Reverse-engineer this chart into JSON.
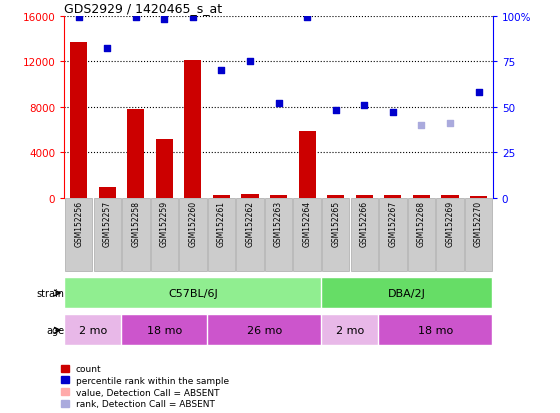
{
  "title": "GDS2929 / 1420465_s_at",
  "samples": [
    "GSM152256",
    "GSM152257",
    "GSM152258",
    "GSM152259",
    "GSM152260",
    "GSM152261",
    "GSM152262",
    "GSM152263",
    "GSM152264",
    "GSM152265",
    "GSM152266",
    "GSM152267",
    "GSM152268",
    "GSM152269",
    "GSM152270"
  ],
  "counts": [
    13700,
    900,
    7800,
    5200,
    12100,
    200,
    350,
    250,
    5900,
    200,
    200,
    200,
    200,
    200,
    170
  ],
  "value_absent": [
    false,
    false,
    false,
    false,
    false,
    false,
    false,
    false,
    false,
    false,
    false,
    false,
    false,
    false,
    false
  ],
  "percentile_ranks": [
    99,
    82,
    99,
    98,
    99,
    70,
    75,
    52,
    99,
    48,
    51,
    47,
    40,
    41,
    58
  ],
  "rank_absent": [
    false,
    false,
    false,
    false,
    false,
    false,
    false,
    false,
    false,
    false,
    false,
    false,
    true,
    true,
    false
  ],
  "strain_groups": [
    {
      "label": "C57BL/6J",
      "start": 0,
      "end": 8,
      "color": "#90ee90"
    },
    {
      "label": "DBA/2J",
      "start": 9,
      "end": 14,
      "color": "#66dd66"
    }
  ],
  "age_groups": [
    {
      "label": "2 mo",
      "start": 0,
      "end": 1,
      "color": "#e8b8e8"
    },
    {
      "label": "18 mo",
      "start": 2,
      "end": 4,
      "color": "#cc55cc"
    },
    {
      "label": "26 mo",
      "start": 5,
      "end": 8,
      "color": "#cc55cc"
    },
    {
      "label": "2 mo",
      "start": 9,
      "end": 10,
      "color": "#e8b8e8"
    },
    {
      "label": "18 mo",
      "start": 11,
      "end": 14,
      "color": "#cc55cc"
    }
  ],
  "ylim_left": [
    0,
    16000
  ],
  "ylim_right": [
    0,
    100
  ],
  "yticks_left": [
    0,
    4000,
    8000,
    12000,
    16000
  ],
  "yticks_right": [
    0,
    25,
    50,
    75,
    100
  ],
  "bar_color": "#cc0000",
  "bar_absent_color": "#ffaaaa",
  "dot_color": "#0000cc",
  "dot_absent_color": "#aaaadd",
  "bg_color": "#ffffff",
  "legend_items": [
    {
      "label": "count",
      "color": "#cc0000"
    },
    {
      "label": "percentile rank within the sample",
      "color": "#0000cc"
    },
    {
      "label": "value, Detection Call = ABSENT",
      "color": "#ffaaaa"
    },
    {
      "label": "rank, Detection Call = ABSENT",
      "color": "#aaaadd"
    }
  ]
}
